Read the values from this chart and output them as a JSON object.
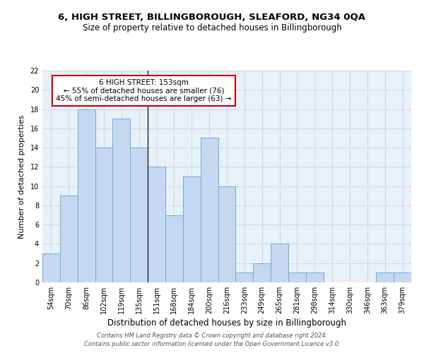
{
  "title": "6, HIGH STREET, BILLINGBOROUGH, SLEAFORD, NG34 0QA",
  "subtitle": "Size of property relative to detached houses in Billingborough",
  "xlabel": "Distribution of detached houses by size in Billingborough",
  "ylabel": "Number of detached properties",
  "categories": [
    "54sqm",
    "70sqm",
    "86sqm",
    "102sqm",
    "119sqm",
    "135sqm",
    "151sqm",
    "168sqm",
    "184sqm",
    "200sqm",
    "216sqm",
    "233sqm",
    "249sqm",
    "265sqm",
    "281sqm",
    "298sqm",
    "314sqm",
    "330sqm",
    "346sqm",
    "363sqm",
    "379sqm"
  ],
  "values": [
    3,
    9,
    18,
    14,
    17,
    14,
    12,
    7,
    11,
    15,
    10,
    1,
    2,
    4,
    1,
    1,
    0,
    0,
    0,
    1,
    1
  ],
  "bar_color": "#c5d8f0",
  "bar_edge_color": "#6aaed6",
  "highlight_index": 6,
  "highlight_line_color": "#222222",
  "annotation_line1": "6 HIGH STREET: 153sqm",
  "annotation_line2": "← 55% of detached houses are smaller (76)",
  "annotation_line3": "45% of semi-detached houses are larger (63) →",
  "annotation_box_color": "#ffffff",
  "annotation_box_edge_color": "#cc0000",
  "ylim": [
    0,
    22
  ],
  "yticks": [
    0,
    2,
    4,
    6,
    8,
    10,
    12,
    14,
    16,
    18,
    20,
    22
  ],
  "grid_color": "#c8d8e8",
  "background_color": "#e8f0f8",
  "footer": "Contains HM Land Registry data © Crown copyright and database right 2024.\nContains public sector information licensed under the Open Government Licence v3.0.",
  "title_fontsize": 9.5,
  "subtitle_fontsize": 8.5,
  "xlabel_fontsize": 8.5,
  "ylabel_fontsize": 8.0,
  "tick_fontsize": 7.0,
  "footer_fontsize": 6.0,
  "annot_fontsize": 7.5
}
